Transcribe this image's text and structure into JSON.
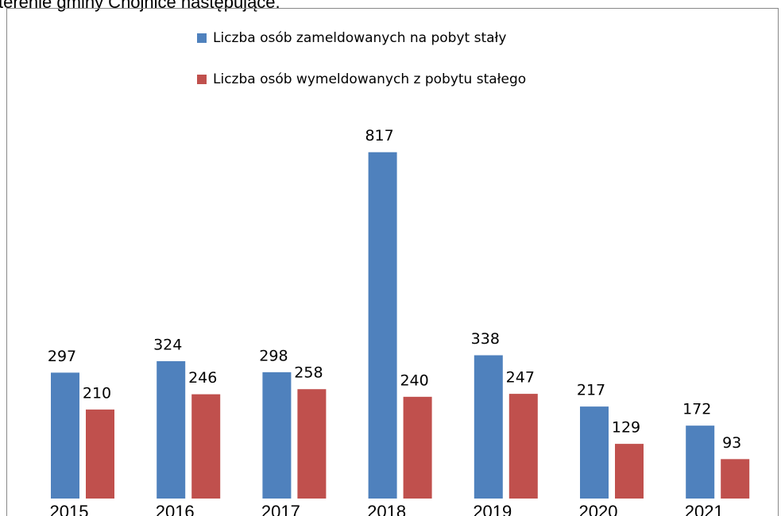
{
  "page_text": "terenie gminy Chojnice następujące.",
  "chart_data": {
    "type": "bar",
    "categories": [
      "2015",
      "2016",
      "2017",
      "2018",
      "2019",
      "2020",
      "2021"
    ],
    "series": [
      {
        "name": "Liczba osób zameldowanych na pobyt stały",
        "color": "#4f81bd",
        "values": [
          297,
          324,
          298,
          817,
          338,
          217,
          172
        ]
      },
      {
        "name": "Liczba osób wymeldowanych z pobytu stałego",
        "color": "#c0504d",
        "values": [
          210,
          246,
          258,
          240,
          247,
          129,
          93
        ]
      }
    ],
    "legend": "top"
  }
}
